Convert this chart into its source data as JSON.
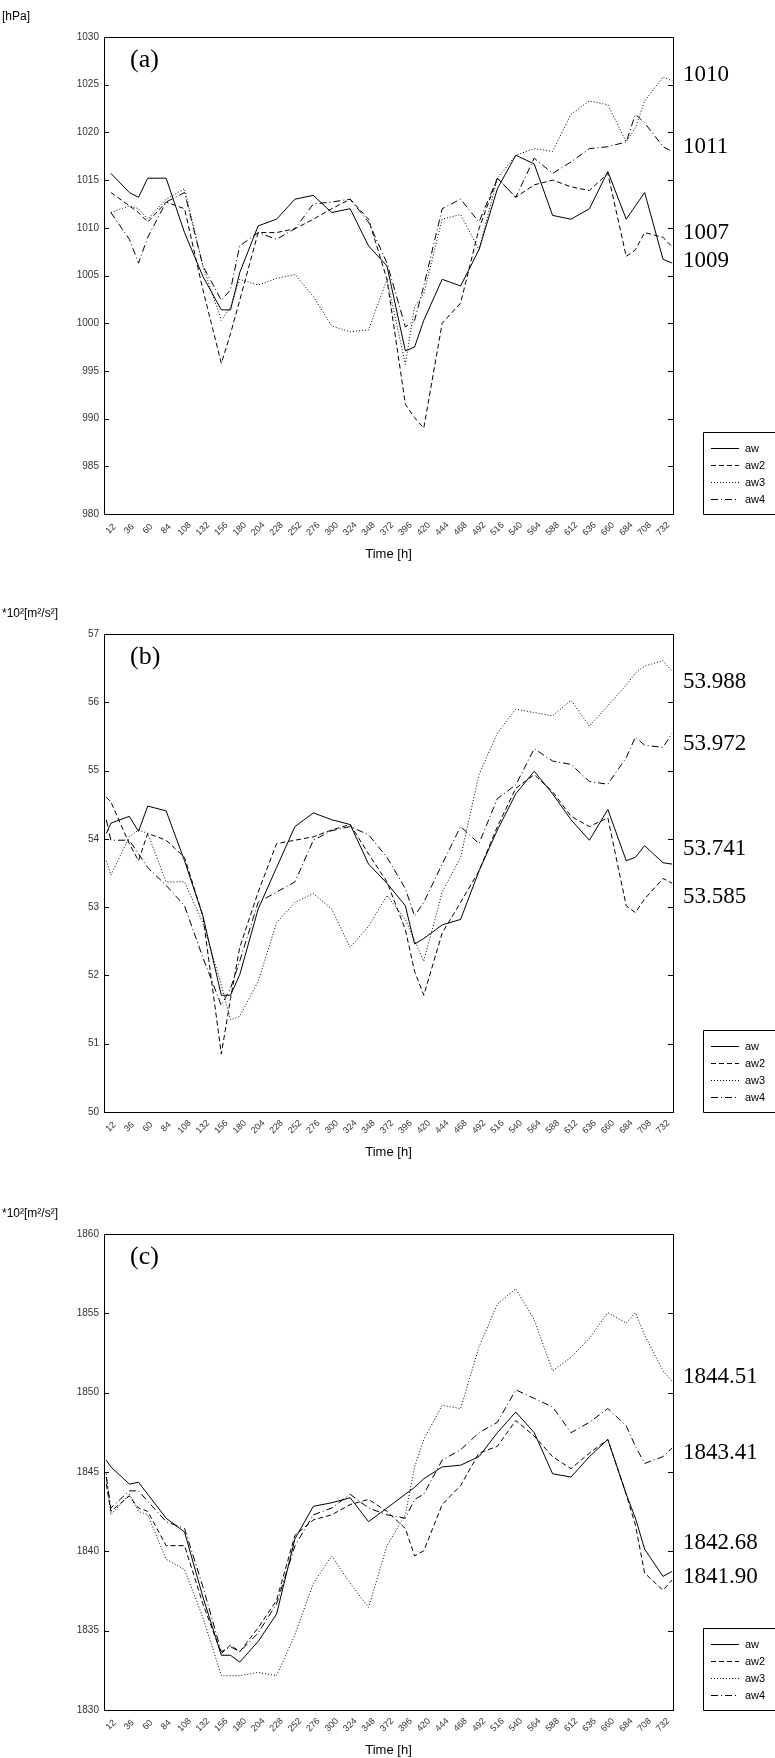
{
  "chart_data": [
    {
      "type": "line",
      "title": "(a)",
      "ylabel": "[hPa]",
      "xlabel": "Time [h]",
      "legend": "bottom right",
      "x": [
        12,
        36,
        48,
        60,
        84,
        108,
        132,
        156,
        168,
        180,
        204,
        228,
        252,
        276,
        300,
        324,
        348,
        372,
        396,
        408,
        420,
        444,
        468,
        492,
        516,
        540,
        564,
        588,
        612,
        636,
        660,
        684,
        696,
        708,
        732,
        744
      ],
      "series": [
        {
          "name": "aw",
          "color": "#000000",
          "line_style": "solid",
          "values": [
            1015.7,
            1013.7,
            1013.2,
            1015.2,
            1015.2,
            1009.5,
            1004.9,
            1001.4,
            1001.4,
            1005.3,
            1010.2,
            1010.9,
            1013.0,
            1013.4,
            1011.6,
            1012.0,
            1008.1,
            1006.0,
            997.1,
            997.5,
            1000.3,
            1004.6,
            1003.9,
            1007.7,
            1014.1,
            1017.6,
            1016.7,
            1011.3,
            1010.9,
            1012.0,
            1015.9,
            1010.9,
            1012.3,
            1013.7,
            1006.7,
            1006.3
          ]
        },
        {
          "name": "aw2",
          "color": "#000000",
          "line_style": "dashed",
          "values": [
            1013.7,
            1012.3,
            1011.6,
            1010.6,
            1012.7,
            1012.0,
            1003.5,
            995.8,
            998.9,
            1002.4,
            1009.5,
            1009.5,
            1009.9,
            1010.9,
            1012.0,
            1013.0,
            1010.9,
            1004.6,
            991.5,
            990.1,
            989.0,
            1000.0,
            1002.1,
            1009.9,
            1015.2,
            1013.2,
            1014.5,
            1015.0,
            1014.3,
            1013.9,
            1015.7,
            1007.0,
            1007.7,
            1009.5,
            1009.0,
            1008.0
          ]
        },
        {
          "name": "aw3",
          "color": "#000000",
          "line_style": "dotted",
          "values": [
            1011.6,
            1012.3,
            1012.0,
            1010.9,
            1013.0,
            1014.1,
            1006.0,
            1000.3,
            1001.7,
            1004.6,
            1004.0,
            1004.7,
            1005.1,
            1002.8,
            999.7,
            999.1,
            999.3,
            1004.6,
            995.7,
            1001.7,
            1003.1,
            1010.9,
            1011.4,
            1007.7,
            1015.2,
            1017.6,
            1018.3,
            1018.0,
            1021.9,
            1023.3,
            1022.9,
            1019.0,
            1020.5,
            1023.3,
            1025.8,
            1025.4
          ]
        },
        {
          "name": "aw4",
          "color": "#000000",
          "line_style": "dashdot",
          "values": [
            1011.6,
            1008.8,
            1006.3,
            1009.0,
            1012.7,
            1013.7,
            1006.0,
            1002.4,
            1003.5,
            1008.1,
            1009.5,
            1008.8,
            1009.9,
            1012.5,
            1012.7,
            1013.0,
            1010.6,
            1006.3,
            999.6,
            1000.3,
            1003.9,
            1012.0,
            1013.0,
            1010.6,
            1015.2,
            1013.2,
            1017.3,
            1015.7,
            1016.9,
            1018.3,
            1018.5,
            1019.0,
            1021.9,
            1021.0,
            1018.5,
            1018.0
          ]
        }
      ],
      "xlim": [
        3,
        745
      ],
      "xticks": [
        12,
        36,
        60,
        84,
        108,
        132,
        156,
        180,
        204,
        228,
        252,
        276,
        300,
        324,
        348,
        372,
        396,
        420,
        444,
        468,
        492,
        516,
        540,
        564,
        588,
        612,
        636,
        660,
        684,
        708,
        732
      ],
      "ylim": [
        980,
        1030
      ],
      "yticks": [
        980,
        985,
        990,
        995,
        1000,
        1005,
        1010,
        1015,
        1020,
        1025,
        1030
      ],
      "annotations": [
        "1010",
        "1011",
        "1007",
        "1009"
      ]
    },
    {
      "type": "line",
      "title": "(b)",
      "ylabel": "*10²[m²/s²]",
      "xlabel": "Time [h]",
      "legend": "bottom right",
      "x": [
        6,
        12,
        36,
        48,
        60,
        84,
        108,
        132,
        156,
        168,
        180,
        204,
        228,
        252,
        276,
        300,
        324,
        348,
        372,
        396,
        408,
        420,
        444,
        468,
        492,
        516,
        540,
        564,
        588,
        612,
        636,
        660,
        684,
        696,
        708,
        732,
        744
      ],
      "series": [
        {
          "name": "aw",
          "color": "#000000",
          "line_style": "solid",
          "values": [
            54.08,
            54.23,
            54.33,
            54.11,
            54.48,
            54.41,
            53.68,
            52.87,
            51.71,
            51.71,
            52.01,
            52.97,
            53.58,
            54.18,
            54.38,
            54.28,
            54.21,
            53.63,
            53.35,
            53.02,
            52.46,
            52.54,
            52.74,
            52.82,
            53.53,
            54.13,
            54.66,
            54.99,
            54.66,
            54.28,
            53.98,
            54.43,
            53.68,
            53.73,
            53.9,
            53.65,
            53.63
          ]
        },
        {
          "name": "aw2",
          "color": "#000000",
          "line_style": "dashed",
          "values": [
            54.61,
            54.54,
            53.93,
            53.68,
            54.08,
            53.98,
            53.73,
            52.87,
            50.85,
            51.66,
            52.41,
            53.22,
            53.93,
            53.98,
            54.03,
            54.13,
            54.21,
            53.78,
            53.37,
            52.67,
            52.06,
            51.71,
            52.62,
            53.07,
            53.53,
            54.18,
            54.74,
            54.94,
            54.69,
            54.33,
            54.18,
            54.31,
            53.02,
            52.92,
            53.12,
            53.42,
            53.35
          ]
        },
        {
          "name": "aw3",
          "color": "#000000",
          "line_style": "dotted",
          "values": [
            53.68,
            53.47,
            54.03,
            54.13,
            54.08,
            53.37,
            53.37,
            52.77,
            51.86,
            51.35,
            51.4,
            51.91,
            52.77,
            53.07,
            53.2,
            52.97,
            52.41,
            52.72,
            53.17,
            52.82,
            52.51,
            52.21,
            53.22,
            53.73,
            54.94,
            55.55,
            55.9,
            55.85,
            55.8,
            56.03,
            55.65,
            55.95,
            56.25,
            56.43,
            56.53,
            56.61,
            56.45
          ]
        },
        {
          "name": "aw4",
          "color": "#000000",
          "line_style": "dashdot",
          "values": [
            54.28,
            53.98,
            53.98,
            53.78,
            53.58,
            53.32,
            53.02,
            52.26,
            51.56,
            51.81,
            52.21,
            53.07,
            53.22,
            53.37,
            53.98,
            54.12,
            54.18,
            54.06,
            53.73,
            53.27,
            52.87,
            53.07,
            53.63,
            54.18,
            53.93,
            54.59,
            54.79,
            55.32,
            55.14,
            55.09,
            54.84,
            54.8,
            55.19,
            55.49,
            55.37,
            55.34,
            55.55
          ]
        }
      ],
      "xlim": [
        3,
        745
      ],
      "xticks": [
        12,
        36,
        60,
        84,
        108,
        132,
        156,
        180,
        204,
        228,
        252,
        276,
        300,
        324,
        348,
        372,
        396,
        420,
        444,
        468,
        492,
        516,
        540,
        564,
        588,
        612,
        636,
        660,
        684,
        708,
        732
      ],
      "ylim": [
        50,
        57
      ],
      "yticks": [
        50,
        51,
        52,
        53,
        54,
        55,
        56,
        57
      ],
      "annotations": [
        "53.988",
        "53.972",
        "53.741",
        "53.585"
      ]
    },
    {
      "type": "line",
      "title": "(c)",
      "ylabel": "*10²[m²/s²]",
      "xlabel": "Time [h]",
      "legend": "bottom right",
      "x": [
        6,
        12,
        36,
        48,
        60,
        84,
        108,
        132,
        156,
        168,
        180,
        204,
        228,
        252,
        276,
        300,
        324,
        348,
        372,
        396,
        408,
        420,
        444,
        468,
        492,
        516,
        540,
        564,
        588,
        612,
        636,
        660,
        684,
        696,
        708,
        732,
        744
      ],
      "series": [
        {
          "name": "aw",
          "color": "#000000",
          "line_style": "solid",
          "values": [
            1845.75,
            1845.32,
            1844.24,
            1844.35,
            1843.6,
            1842.09,
            1841.22,
            1837.12,
            1833.45,
            1833.45,
            1833.02,
            1834.32,
            1836.04,
            1840.79,
            1842.84,
            1843.06,
            1843.38,
            1841.87,
            1842.73,
            1843.6,
            1844.03,
            1844.57,
            1845.32,
            1845.43,
            1845.97,
            1847.48,
            1848.78,
            1847.48,
            1844.89,
            1844.68,
            1845.97,
            1847.05,
            1843.6,
            1842.09,
            1840.14,
            1838.42,
            1838.74
          ]
        },
        {
          "name": "aw2",
          "color": "#000000",
          "line_style": "dashed",
          "values": [
            1844.24,
            1842.52,
            1843.49,
            1842.73,
            1842.52,
            1840.36,
            1840.36,
            1836.69,
            1833.56,
            1834.1,
            1833.67,
            1835.18,
            1836.91,
            1841.01,
            1841.98,
            1842.3,
            1842.95,
            1843.27,
            1842.52,
            1841.44,
            1839.71,
            1840.03,
            1842.95,
            1844.14,
            1846.19,
            1846.62,
            1848.24,
            1847.27,
            1845.97,
            1845.21,
            1846.19,
            1847.05,
            1843.6,
            1841.65,
            1838.63,
            1837.55,
            1838.2
          ]
        },
        {
          "name": "aw3",
          "color": "#000000",
          "line_style": "dotted",
          "values": [
            1844.89,
            1842.3,
            1843.6,
            1842.52,
            1842.3,
            1839.5,
            1838.85,
            1835.83,
            1832.16,
            1832.16,
            1832.16,
            1832.37,
            1832.16,
            1834.75,
            1837.98,
            1839.71,
            1837.98,
            1836.47,
            1840.36,
            1842.3,
            1845.32,
            1847.05,
            1849.21,
            1848.99,
            1852.88,
            1855.58,
            1856.55,
            1854.6,
            1851.37,
            1852.23,
            1853.42,
            1855.04,
            1854.39,
            1855.04,
            1853.63,
            1851.37,
            1850.72
          ]
        },
        {
          "name": "aw4",
          "color": "#000000",
          "line_style": "dashdot",
          "values": [
            1844.68,
            1842.73,
            1843.81,
            1843.81,
            1843.16,
            1841.87,
            1841.44,
            1837.77,
            1833.67,
            1833.99,
            1833.67,
            1834.85,
            1836.69,
            1840.36,
            1842.3,
            1842.73,
            1843.6,
            1842.73,
            1842.3,
            1842.09,
            1843.27,
            1843.6,
            1845.75,
            1846.4,
            1847.48,
            1848.13,
            1850.18,
            1849.64,
            1849.1,
            1847.48,
            1848.13,
            1849.0,
            1847.91,
            1846.62,
            1845.54,
            1845.97,
            1846.51
          ]
        }
      ],
      "xlim": [
        3,
        745
      ],
      "xticks": [
        12,
        36,
        60,
        84,
        108,
        132,
        156,
        180,
        204,
        228,
        252,
        276,
        300,
        324,
        348,
        372,
        396,
        420,
        444,
        468,
        492,
        516,
        540,
        564,
        588,
        612,
        636,
        660,
        684,
        708,
        732
      ],
      "ylim": [
        1830,
        1860
      ],
      "yticks": [
        1830,
        1835,
        1840,
        1845,
        1850,
        1855,
        1860
      ],
      "annotations": [
        "1844.51",
        "1843.41",
        "1842.68",
        "1841.90"
      ]
    }
  ]
}
